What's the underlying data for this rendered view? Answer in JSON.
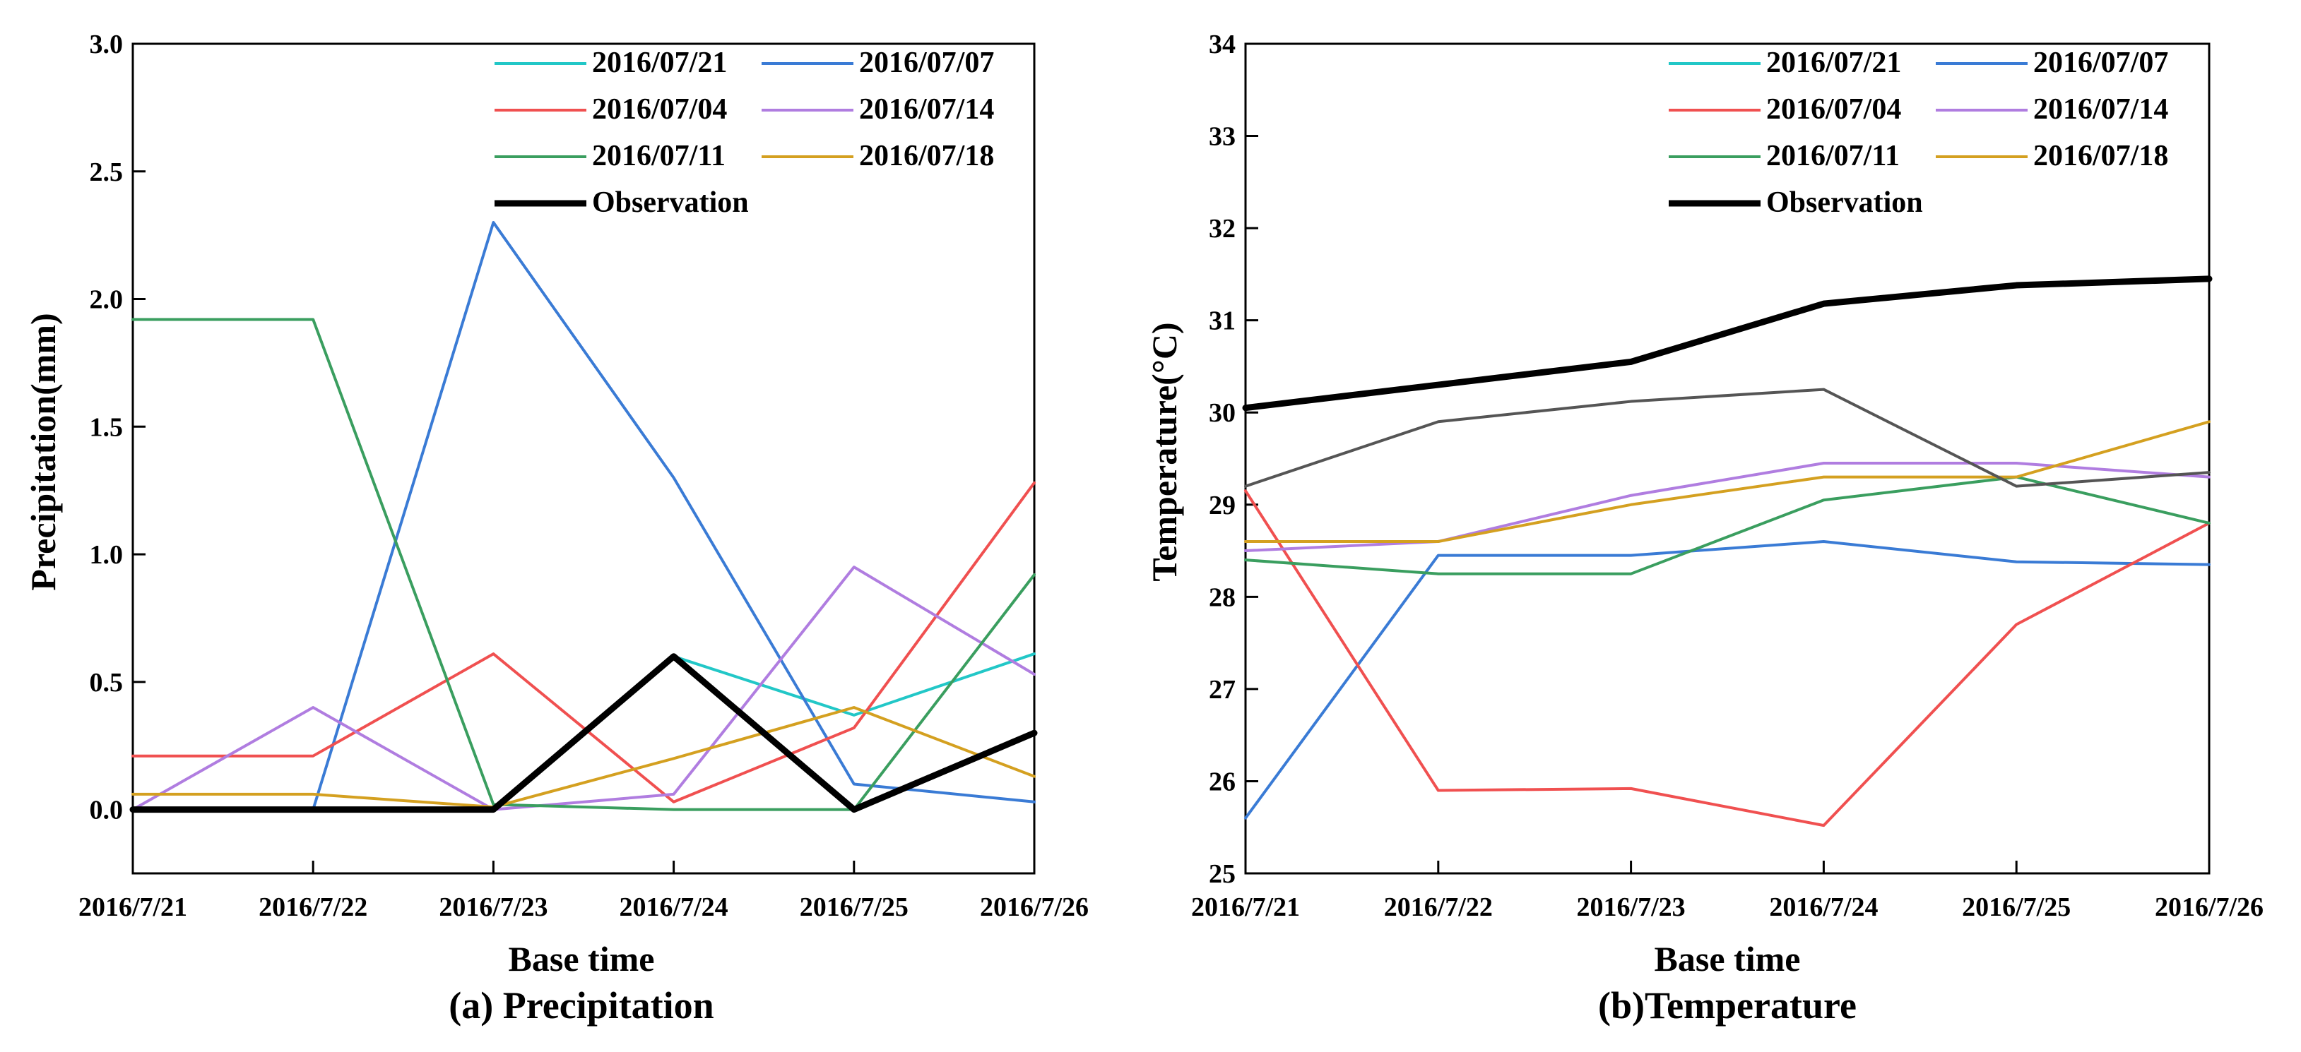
{
  "chart_data": [
    {
      "type": "line",
      "caption": "(a) Precipitation",
      "xlabel": "Base time",
      "ylabel": "Precipitation(mm)",
      "categories": [
        "2016/7/21",
        "2016/7/22",
        "2016/7/23",
        "2016/7/24",
        "2016/7/25",
        "2016/7/26"
      ],
      "ylim": [
        -0.25,
        3.0
      ],
      "yticks": [
        "0.0",
        "0.5",
        "1.0",
        "1.5",
        "2.0",
        "2.5",
        "3.0"
      ],
      "legend_position": "top-right",
      "series": [
        {
          "name": "2016/07/21",
          "color": "#22c7c7",
          "values": [
            null,
            null,
            null,
            0.6,
            0.37,
            0.61
          ]
        },
        {
          "name": "2016/07/07",
          "color": "#3a7bd5",
          "values": [
            0.0,
            0.0,
            2.3,
            1.3,
            0.1,
            0.03
          ]
        },
        {
          "name": "2016/07/04",
          "color": "#f05050",
          "values": [
            0.21,
            0.21,
            0.61,
            0.03,
            0.32,
            1.28
          ]
        },
        {
          "name": "2016/07/14",
          "color": "#b07de0",
          "values": [
            0.0,
            0.4,
            0.0,
            0.06,
            0.95,
            0.53
          ]
        },
        {
          "name": "2016/07/11",
          "color": "#3a9e5f",
          "values": [
            1.92,
            1.92,
            0.02,
            0.0,
            0.0,
            0.92
          ]
        },
        {
          "name": "2016/07/18",
          "color": "#d4a020",
          "values": [
            0.06,
            0.06,
            0.01,
            0.2,
            0.4,
            0.13
          ]
        },
        {
          "name": "Observation",
          "color": "#000000",
          "bold": true,
          "values": [
            0.0,
            0.0,
            0.0,
            0.6,
            0.0,
            0.3
          ]
        }
      ]
    },
    {
      "type": "line",
      "caption": "(b)Temperature",
      "xlabel": "Base time",
      "ylabel": "Temperature(°C)",
      "categories": [
        "2016/7/21",
        "2016/7/22",
        "2016/7/23",
        "2016/7/24",
        "2016/7/25",
        "2016/7/26"
      ],
      "ylim": [
        25,
        34
      ],
      "yticks": [
        "25",
        "26",
        "27",
        "28",
        "29",
        "30",
        "31",
        "32",
        "33",
        "34"
      ],
      "legend_position": "top-right",
      "series": [
        {
          "name": "2016/07/21",
          "color": "#22c7c7",
          "values": [
            null,
            null,
            null,
            null,
            null,
            null
          ]
        },
        {
          "name": "2016/07/07",
          "color": "#3a7bd5",
          "values": [
            25.6,
            28.45,
            28.45,
            28.6,
            28.38,
            28.35
          ]
        },
        {
          "name": "2016/07/04",
          "color": "#f05050",
          "values": [
            29.15,
            25.9,
            25.92,
            25.52,
            27.7,
            28.8
          ]
        },
        {
          "name": "2016/07/14",
          "color": "#b07de0",
          "values": [
            28.5,
            28.6,
            29.1,
            29.45,
            29.45,
            29.3
          ]
        },
        {
          "name": "2016/07/11",
          "color": "#3a9e5f",
          "values": [
            28.4,
            28.25,
            28.25,
            29.05,
            29.3,
            28.8
          ]
        },
        {
          "name": "2016/07/18",
          "color": "#d4a020",
          "values": [
            28.6,
            28.6,
            29.0,
            29.3,
            29.3,
            29.9
          ]
        },
        {
          "name": "Observation",
          "color": "#000000",
          "bold": true,
          "values": [
            30.05,
            30.3,
            30.55,
            31.18,
            31.38,
            31.45
          ]
        },
        {
          "color": "#555555",
          "values": [
            29.2,
            29.9,
            30.12,
            30.25,
            29.2,
            29.35
          ]
        }
      ]
    }
  ]
}
